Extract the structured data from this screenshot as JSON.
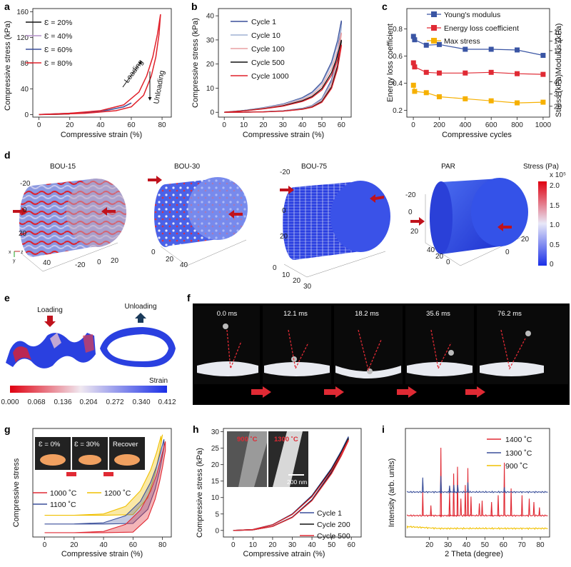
{
  "panels": {
    "a": "a",
    "b": "b",
    "c": "c",
    "d": "d",
    "e": "e",
    "f": "f",
    "g": "g",
    "h": "h",
    "i": "i"
  },
  "chart_data": [
    {
      "id": "a",
      "type": "line",
      "xlabel": "Compressive strain (%)",
      "ylabel": "Compressive stress (kPa)",
      "xlim": [
        -4,
        86
      ],
      "ylim": [
        -4,
        165
      ],
      "xticks": [
        0,
        20,
        40,
        60,
        80
      ],
      "yticks": [
        0,
        40,
        80,
        120,
        160
      ],
      "annotations": [
        "Loading",
        "Unloading"
      ],
      "series": [
        {
          "name": "Ɛ = 20%",
          "color": "#111111",
          "x": [
            0,
            10,
            15,
            20
          ],
          "y": [
            0,
            0.3,
            0.6,
            1
          ]
        },
        {
          "name": "Ɛ = 40%",
          "color": "#b48fc8",
          "x": [
            0,
            20,
            30,
            40
          ],
          "y": [
            0,
            1.2,
            2.5,
            4
          ]
        },
        {
          "name": "Ɛ = 60%",
          "color": "#3a4f9a",
          "x": [
            0,
            30,
            45,
            55,
            60
          ],
          "y": [
            0,
            3,
            7,
            12,
            18
          ]
        },
        {
          "name": "Ɛ = 80%",
          "color": "#e0202a",
          "loading": {
            "x": [
              0,
              20,
              40,
              55,
              65,
              70,
              74,
              77,
              79
            ],
            "y": [
              0,
              2,
              6,
              15,
              35,
              60,
              90,
              125,
              156
            ]
          },
          "unloading": {
            "x": [
              79,
              78,
              76,
              73,
              68,
              60,
              50,
              30,
              10,
              0
            ],
            "y": [
              156,
              125,
              90,
              60,
              30,
              12,
              6,
              2,
              0.5,
              0
            ]
          }
        }
      ]
    },
    {
      "id": "b",
      "type": "line",
      "xlabel": "Compressive strain (%)",
      "ylabel": "Compressive stress (kPa)",
      "xlim": [
        -3,
        65
      ],
      "ylim": [
        -2,
        43
      ],
      "xticks": [
        0,
        10,
        20,
        30,
        40,
        50,
        60
      ],
      "yticks": [
        0,
        10,
        20,
        30,
        40
      ],
      "series": [
        {
          "name": "Cycle 1",
          "color": "#3a4f9a",
          "peak": 38
        },
        {
          "name": "Cycle 10",
          "color": "#9fb0d4",
          "peak": 36
        },
        {
          "name": "Cycle 100",
          "color": "#e8a0a4",
          "peak": 33
        },
        {
          "name": "Cycle 500",
          "color": "#111111",
          "peak": 30
        },
        {
          "name": "Cycle 1000",
          "color": "#e0202a",
          "peak": 28
        }
      ],
      "curve_x": [
        0,
        10,
        20,
        30,
        40,
        45,
        50,
        55,
        58,
        60
      ],
      "curve_frac": [
        0,
        0.02,
        0.05,
        0.09,
        0.16,
        0.22,
        0.33,
        0.55,
        0.78,
        1.0
      ]
    },
    {
      "id": "c",
      "type": "line",
      "xlabel": "Compressive cycles",
      "ylabel": "Energy loss coefficient",
      "ylabel_right_top": "Modulus (kPa)",
      "ylabel_right_bottom": "Stress (kPa)",
      "xlim": [
        -50,
        1050
      ],
      "ylim": [
        0.15,
        0.95
      ],
      "xticks": [
        0,
        200,
        400,
        600,
        800,
        1000
      ],
      "yticks": [
        0.2,
        0.4,
        0.6,
        0.8
      ],
      "modulus_ticks": [
        12,
        14,
        16
      ],
      "stress_ticks": [
        20,
        30,
        40
      ],
      "x": [
        1,
        10,
        100,
        200,
        400,
        600,
        800,
        1000
      ],
      "series": [
        {
          "name": "Young's modulus",
          "color": "#3a55a4",
          "y": [
            0.745,
            0.72,
            0.68,
            0.685,
            0.65,
            0.65,
            0.645,
            0.605
          ]
        },
        {
          "name": "Energy loss coefficient",
          "color": "#e02a34",
          "y": [
            0.55,
            0.52,
            0.48,
            0.475,
            0.475,
            0.48,
            0.47,
            0.465
          ]
        },
        {
          "name": "Max stress",
          "color": "#f6b000",
          "y": [
            0.385,
            0.34,
            0.33,
            0.3,
            0.285,
            0.27,
            0.255,
            0.26
          ]
        }
      ]
    },
    {
      "id": "g",
      "type": "line",
      "xlabel": "Compressive strain (%)",
      "ylabel": "Compressive stress",
      "xlim": [
        -8,
        86
      ],
      "xticks": [
        0,
        20,
        40,
        60,
        80
      ],
      "legend": [
        {
          "name": "1000 ˚C",
          "color": "#e02a34"
        },
        {
          "name": "1200 ˚C",
          "color": "#f0c000"
        },
        {
          "name": "1100 ˚C",
          "color": "#3a4f9a"
        }
      ],
      "photo_labels": [
        "Ɛ = 0%",
        "Ɛ = 30%",
        "Recover"
      ]
    },
    {
      "id": "h",
      "type": "line",
      "xlabel": "Compressive atrain (%)",
      "ylabel": "Compressive stress (kPa)",
      "xlim": [
        -5,
        65
      ],
      "ylim": [
        -2,
        31
      ],
      "xticks": [
        0,
        10,
        20,
        30,
        40,
        50,
        60
      ],
      "yticks": [
        0,
        5,
        10,
        15,
        20,
        25,
        30
      ],
      "series": [
        {
          "name": "Cycle 1",
          "color": "#3a4f9a",
          "peak": 28.5
        },
        {
          "name": "Cycle 200",
          "color": "#111111",
          "peak": 28
        },
        {
          "name": "Cycle 500",
          "color": "#e02a34",
          "peak": 27.5
        }
      ],
      "inset_labels": [
        "900 ˚C",
        "1300 ˚C"
      ],
      "scale_bar": "200 nm"
    },
    {
      "id": "i",
      "type": "line",
      "xlabel": "2 Theta (degree)",
      "ylabel": "Intensity (arb. units)",
      "xlim": [
        7,
        85
      ],
      "xticks": [
        20,
        30,
        40,
        50,
        60,
        70,
        80
      ],
      "series": [
        {
          "name": "1400 ˚C",
          "color": "#e02a34",
          "peaks": [
            [
              16.4,
              0.35
            ],
            [
              20.8,
              0.15
            ],
            [
              26.2,
              1.0
            ],
            [
              30.9,
              0.35
            ],
            [
              33.1,
              0.62
            ],
            [
              35.2,
              0.72
            ],
            [
              37,
              0.25
            ],
            [
              39.4,
              0.45
            ],
            [
              40.8,
              0.7
            ],
            [
              42.5,
              0.28
            ],
            [
              47,
              0.18
            ],
            [
              48.5,
              0.22
            ],
            [
              53.6,
              0.2
            ],
            [
              57.2,
              0.3
            ],
            [
              60.5,
              0.78
            ],
            [
              64.2,
              0.4
            ],
            [
              70.1,
              0.3
            ],
            [
              74.0,
              0.25
            ],
            [
              76.5,
              0.2
            ],
            [
              79.5,
              0.12
            ]
          ]
        },
        {
          "name": "1300 ˚C",
          "color": "#3a4f9a",
          "peaks": [
            [
              16.4,
              0.45
            ],
            [
              26.2,
              0.5
            ],
            [
              30.9,
              0.2
            ],
            [
              33.2,
              0.22
            ],
            [
              35.3,
              0.22
            ],
            [
              40.8,
              0.3
            ],
            [
              60.5,
              0.15
            ]
          ]
        },
        {
          "name": "900 ˚C",
          "color": "#f0c000",
          "peaks": []
        }
      ]
    }
  ],
  "panel_d": {
    "labels": [
      "BOU-15",
      "BOU-30",
      "BOU-75",
      "PAR"
    ],
    "colorbar_title": "Stress  (Pa)",
    "colorbar_exp": "x 10⁵",
    "colorbar_ticks": [
      "2.0",
      "1.5",
      "1.0",
      "0.5",
      "0"
    ],
    "tick_labels": [
      "-20",
      "0",
      "20",
      "-20",
      "0",
      "20",
      "40",
      "0",
      "20",
      "40",
      "10",
      "20",
      "30"
    ],
    "axis_letters": [
      "x",
      "z",
      "y"
    ]
  },
  "panel_e": {
    "loading": "Loading",
    "unloading": "Unloading",
    "strain": "Strain",
    "colorbar_ticks": [
      "0.000",
      "0.068",
      "0.136",
      "0.204",
      "0.272",
      "0.340",
      "0.412"
    ]
  },
  "panel_f": {
    "times": [
      "0.0 ms",
      "12.1 ms",
      "18.2 ms",
      "35.6 ms",
      "76.2 ms"
    ]
  }
}
